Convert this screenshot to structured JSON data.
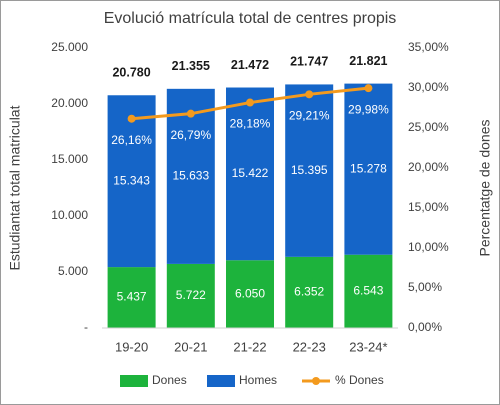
{
  "chart_data": {
    "type": "stacked_bar_line",
    "title": "Evolució matrícula total de centres propis",
    "y_label": "Estudiantat total matriculat",
    "y2_label": "Percentatge de dones",
    "categories": [
      "19-20",
      "20-21",
      "21-22",
      "22-23",
      "23-24*"
    ],
    "series": [
      {
        "name": "Dones",
        "color": "#1db33c",
        "values": [
          5437,
          5722,
          6050,
          6352,
          6543
        ],
        "value_labels": [
          "5.437",
          "5.722",
          "6.050",
          "6.352",
          "6.543"
        ]
      },
      {
        "name": "Homes",
        "color": "#1565c8",
        "values": [
          15343,
          15633,
          15422,
          15395,
          15278
        ],
        "value_labels": [
          "15.343",
          "15.633",
          "15.422",
          "15.395",
          "15.278"
        ]
      },
      {
        "name": "% Dones",
        "color": "#f39a1e",
        "axis": "y2",
        "values": [
          26.16,
          26.79,
          28.18,
          29.21,
          29.98
        ],
        "value_labels": [
          "26,16%",
          "26,79%",
          "28,18%",
          "29,21%",
          "29,98%"
        ]
      }
    ],
    "totals": {
      "values": [
        20780,
        21355,
        21472,
        21747,
        21821
      ],
      "value_labels": [
        "20.780",
        "21.355",
        "21.472",
        "21.747",
        "21.821"
      ]
    },
    "ylim": [
      0,
      25000
    ],
    "yticks": [
      {
        "value": 0,
        "label": "-"
      },
      {
        "value": 5000,
        "label": "5.000"
      },
      {
        "value": 10000,
        "label": "10.000"
      },
      {
        "value": 15000,
        "label": "15.000"
      },
      {
        "value": 20000,
        "label": "20.000"
      },
      {
        "value": 25000,
        "label": "25.000"
      }
    ],
    "y2lim": [
      0,
      35
    ],
    "y2ticks": [
      {
        "value": 0,
        "label": "0,00%"
      },
      {
        "value": 5,
        "label": "5,00%"
      },
      {
        "value": 10,
        "label": "10,00%"
      },
      {
        "value": 15,
        "label": "15,00%"
      },
      {
        "value": 20,
        "label": "20,00%"
      },
      {
        "value": 25,
        "label": "25,00%"
      },
      {
        "value": 30,
        "label": "30,00%"
      },
      {
        "value": 35,
        "label": "35,00%"
      }
    ],
    "legend": "bottom"
  }
}
